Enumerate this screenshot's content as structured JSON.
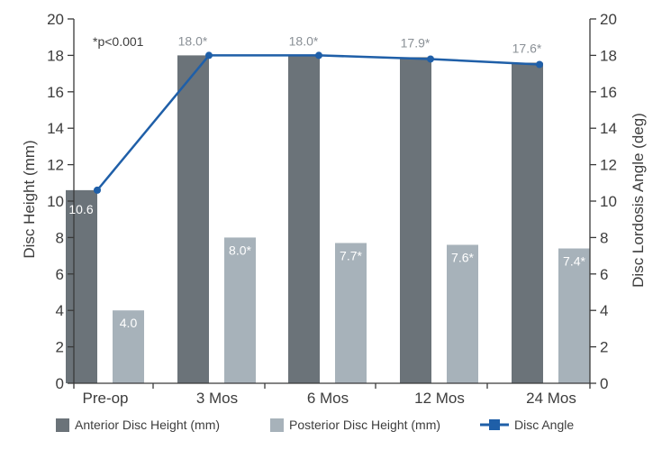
{
  "chart_data": {
    "type": "bar",
    "categories": [
      "Pre-op",
      "3 Mos",
      "6 Mos",
      "12 Mos",
      "24 Mos"
    ],
    "series": [
      {
        "name": "Anterior Disc Height (mm)",
        "kind": "bar",
        "axis": "left",
        "color": "#6b7379",
        "values": [
          10.6,
          18.0,
          18.0,
          17.9,
          17.6
        ],
        "labels": [
          "10.6",
          "18.0*",
          "18.0*",
          "17.9*",
          "17.6*"
        ]
      },
      {
        "name": "Posterior Disc Height (mm)",
        "kind": "bar",
        "axis": "left",
        "color": "#a7b2ba",
        "values": [
          4.0,
          8.0,
          7.7,
          7.6,
          7.4
        ],
        "labels": [
          "4.0",
          "8.0*",
          "7.7*",
          "7.6*",
          "7.4*"
        ]
      },
      {
        "name": "Disc Angle",
        "kind": "line",
        "axis": "right",
        "color": "#1f5fa8",
        "values": [
          10.6,
          18.0,
          18.0,
          17.8,
          17.5
        ]
      }
    ],
    "ylabel": "Disc Height (mm)",
    "y2label": "Disc Lordosis Angle (deg)",
    "ylim": [
      0,
      20
    ],
    "y2lim": [
      0,
      20
    ],
    "yticks": [
      "0",
      "2",
      "4",
      "6",
      "8",
      "10",
      "12",
      "14",
      "16",
      "18",
      "20"
    ],
    "note": "*p<0.001",
    "legend_position": "bottom",
    "grid": false
  }
}
